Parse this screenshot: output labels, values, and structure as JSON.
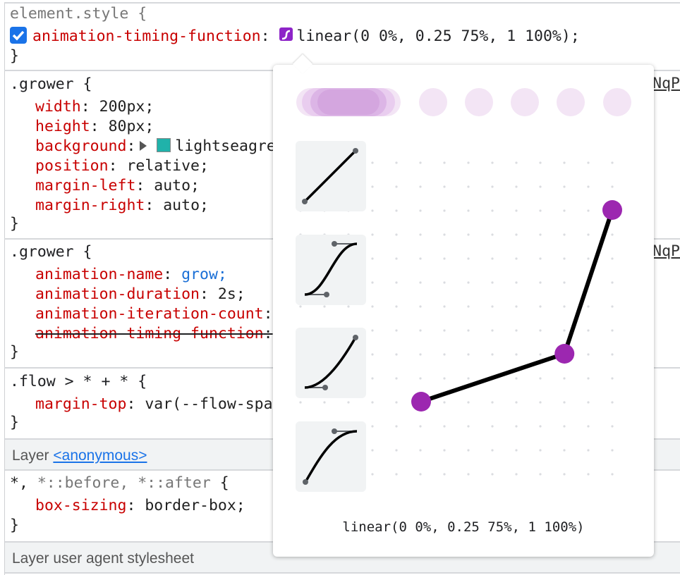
{
  "rules": {
    "element_style": {
      "selector": "element.style {",
      "prop": "animation-timing-function",
      "value": "linear(0 0%, 0.25 75%, 1 100%);",
      "checked": true
    },
    "grower1": {
      "selector": ".grower {",
      "decls": [
        [
          "width",
          "200px;"
        ],
        [
          "height",
          "80px;"
        ],
        [
          "background",
          "lightseagreen;"
        ],
        [
          "position",
          "relative;"
        ],
        [
          "margin-left",
          "auto;"
        ],
        [
          "margin-right",
          "auto;"
        ]
      ],
      "source": "NqP",
      "swatch_color": "#20b2aa"
    },
    "grower2": {
      "selector": ".grower {",
      "decls": [
        [
          "animation-name",
          "grow;"
        ],
        [
          "animation-duration",
          "2s;"
        ],
        [
          "animation-iteration-count",
          ""
        ],
        [
          "animation-timing-function",
          ""
        ]
      ],
      "source": "NqP"
    },
    "flow": {
      "selector": ".flow > * + * {",
      "decls": [
        [
          "margin-top",
          "var(--flow-space);"
        ]
      ]
    },
    "layer_anon": {
      "label": "Layer",
      "link": "<anonymous>"
    },
    "boxsizing": {
      "selector_main": "*,",
      "selector_dim": " *::before, *::after",
      "brace": " {",
      "decls": [
        [
          "box-sizing",
          "border-box;"
        ]
      ]
    },
    "layer_ua": {
      "label": "Layer user agent stylesheet"
    },
    "close": "}"
  },
  "editor": {
    "function_text": "linear(0 0%, 0.25 75%, 1 100%)",
    "points": [
      {
        "value": 0,
        "percent": 0
      },
      {
        "value": 0.25,
        "percent": 75
      },
      {
        "value": 1,
        "percent": 100
      }
    ],
    "accent": "#9c27b0",
    "presets": [
      "linear",
      "ease-in-out",
      "ease-in",
      "ease-out"
    ]
  }
}
